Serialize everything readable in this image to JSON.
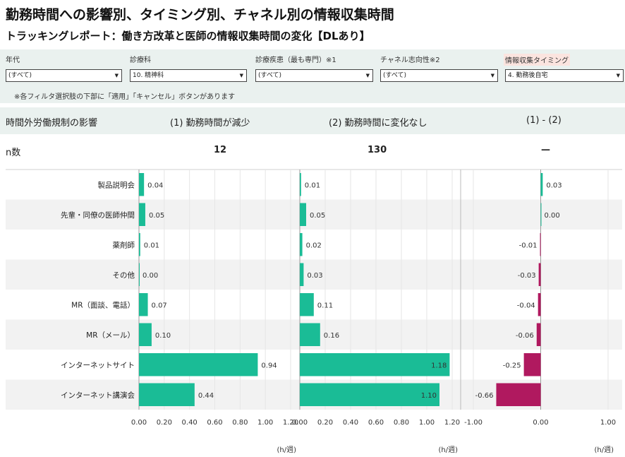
{
  "title": "勤務時間への影響別、タイミング別、チャネル別の情報収集時間",
  "subtitle": "トラッキングレポート：働き方改革と医師の情報収集時間の変化【DLあり】",
  "filters": [
    {
      "label": "年代",
      "value": "(すべて)"
    },
    {
      "label": "診療科",
      "value": "10. 精神科"
    },
    {
      "label": "診療疾患（最も専門）※1",
      "value": "(すべて)"
    },
    {
      "label": "チャネル志向性※2",
      "value": "(すべて)"
    },
    {
      "label": "情報収集タイミング",
      "value": "4. 勤務後自宅"
    }
  ],
  "note": "※各フィルタ選択肢の下部に「適用」「キャンセル」ボタンがあります",
  "header": {
    "row_label": "時間外労働規制の影響",
    "col1": "(1) 勤務時間が減少",
    "col2": "(2) 勤務時間に変化なし",
    "col3": "(1) - (2)"
  },
  "n_row": {
    "label": "n数",
    "col1": "12",
    "col2": "130",
    "col3": "—"
  },
  "unit": "(h/週)",
  "colors": {
    "positive": "#1abc96",
    "negative": "#b0195f",
    "band": "#eaf1ef",
    "row_alt": "#f2f2f2"
  },
  "chart_data": [
    {
      "type": "bar",
      "orientation": "horizontal",
      "title": "(1) 勤務時間が減少",
      "categories": [
        "製品説明会",
        "先輩・同僚の医師仲間",
        "薬剤師",
        "その他",
        "MR（面談、電話）",
        "MR（メール）",
        "インターネットサイト",
        "インターネット講演会"
      ],
      "values": [
        0.04,
        0.05,
        0.01,
        0.0,
        0.07,
        0.1,
        0.94,
        0.44
      ],
      "xlim": [
        0,
        1.2
      ],
      "xticks": [
        "0.00",
        "0.20",
        "0.40",
        "0.60",
        "0.80",
        "1.00",
        "1.20"
      ],
      "xlabel": "(h/週)"
    },
    {
      "type": "bar",
      "orientation": "horizontal",
      "title": "(2) 勤務時間に変化なし",
      "categories": [
        "製品説明会",
        "先輩・同僚の医師仲間",
        "薬剤師",
        "その他",
        "MR（面談、電話）",
        "MR（メール）",
        "インターネットサイト",
        "インターネット講演会"
      ],
      "values": [
        0.01,
        0.05,
        0.02,
        0.03,
        0.11,
        0.16,
        1.18,
        1.1
      ],
      "xlim": [
        0,
        1.2
      ],
      "xticks": [
        "0.00",
        "0.20",
        "0.40",
        "0.60",
        "0.80",
        "1.00",
        "1.20"
      ],
      "xlabel": "(h/週)"
    },
    {
      "type": "bar",
      "orientation": "horizontal",
      "title": "(1) - (2)",
      "categories": [
        "製品説明会",
        "先輩・同僚の医師仲間",
        "薬剤師",
        "その他",
        "MR（面談、電話）",
        "MR（メール）",
        "インターネットサイト",
        "インターネット講演会"
      ],
      "values": [
        0.03,
        0.0,
        -0.01,
        -0.03,
        -0.04,
        -0.06,
        -0.25,
        -0.66
      ],
      "xlim": [
        -1.0,
        1.0
      ],
      "xticks": [
        "-1.00",
        "0.00",
        "1.00"
      ],
      "xlabel": "(h/週)"
    }
  ]
}
